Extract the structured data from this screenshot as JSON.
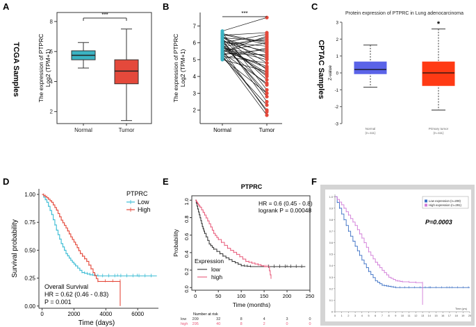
{
  "figure": {
    "panel_letters": [
      "A",
      "B",
      "C",
      "D",
      "E",
      "F"
    ],
    "side_labels": {
      "tcga": "TCGA Samples",
      "cptac": "CPTAC Samples"
    }
  },
  "chart_data": [
    {
      "panel": "A",
      "type": "box",
      "ylabel_line1": "The expression of PTPRC",
      "ylabel_line2": "Log2 (TPM+1)",
      "categories": [
        "Normal",
        "Tumor"
      ],
      "ylim": [
        1.2,
        8.6
      ],
      "yticks": [
        2,
        4,
        6,
        8
      ],
      "boxes": [
        {
          "name": "Normal",
          "min": 4.9,
          "q1": 5.45,
          "median": 5.75,
          "q3": 6.05,
          "max": 6.6,
          "color": "#3bb3c3"
        },
        {
          "name": "Tumor",
          "min": 1.4,
          "q1": 3.85,
          "median": 4.7,
          "q3": 5.45,
          "max": 7.5,
          "color": "#e4493b"
        }
      ],
      "significance": "***"
    },
    {
      "panel": "B",
      "type": "paired-dot",
      "ylabel_line1": "The expression of PTPRC",
      "ylabel_line2": "Log2 (TPM+1)",
      "categories": [
        "Normal",
        "Tumor"
      ],
      "ylim": [
        1.2,
        7.8
      ],
      "yticks": [
        2,
        3,
        4,
        5,
        6,
        7
      ],
      "pairs": [
        [
          5.0,
          4.3
        ],
        [
          5.1,
          3.0
        ],
        [
          5.2,
          4.8
        ],
        [
          5.3,
          5.6
        ],
        [
          5.4,
          2.0
        ],
        [
          5.5,
          6.0
        ],
        [
          5.6,
          4.5
        ],
        [
          5.7,
          5.2
        ],
        [
          5.8,
          3.5
        ],
        [
          5.9,
          6.2
        ],
        [
          6.0,
          4.0
        ],
        [
          6.1,
          5.5
        ],
        [
          6.2,
          2.5
        ],
        [
          6.3,
          6.1
        ],
        [
          6.4,
          4.8
        ],
        [
          6.5,
          5.9
        ],
        [
          6.6,
          3.2
        ],
        [
          6.7,
          7.5
        ],
        [
          5.25,
          1.7
        ],
        [
          5.45,
          6.4
        ],
        [
          5.65,
          5.0
        ],
        [
          5.85,
          4.2
        ],
        [
          6.05,
          5.8
        ],
        [
          6.25,
          3.8
        ],
        [
          6.45,
          6.6
        ],
        [
          5.15,
          2.3
        ],
        [
          5.35,
          5.3
        ],
        [
          5.55,
          4.6
        ],
        [
          5.75,
          6.3
        ],
        [
          5.95,
          3.0
        ],
        [
          6.15,
          5.1
        ],
        [
          6.35,
          4.4
        ],
        [
          6.55,
          6.0
        ],
        [
          5.05,
          5.7
        ],
        [
          5.6,
          1.9
        ],
        [
          6.0,
          6.5
        ],
        [
          6.3,
          5.4
        ],
        [
          5.8,
          4.1
        ],
        [
          5.4,
          3.6
        ],
        [
          6.1,
          2.8
        ]
      ],
      "significance": "***"
    },
    {
      "panel": "C",
      "type": "box",
      "title": "Protein expression of PTPRC in Lung adenocarcinoma",
      "ylabel": "Z-value",
      "categories": [
        "Normal",
        "Primary tumor"
      ],
      "sample_sizes": [
        "(n=111)",
        "(n=111)"
      ],
      "ylim": [
        -3,
        3
      ],
      "yticks": [
        3,
        2,
        1,
        0,
        -1,
        -2,
        -3
      ],
      "boxes": [
        {
          "name": "Normal",
          "min": -0.85,
          "q1": -0.05,
          "median": 0.2,
          "q3": 0.65,
          "max": 1.65,
          "color": "#5a63e8"
        },
        {
          "name": "Primary tumor",
          "min": -2.2,
          "q1": -0.75,
          "median": 0.0,
          "q3": 0.65,
          "max": 2.6,
          "color": "#ff3a14"
        }
      ],
      "significance": "*"
    },
    {
      "panel": "D",
      "type": "line",
      "subtype": "kaplan-meier",
      "xlabel": "Time (days)",
      "ylabel": "Survival probability",
      "xticks": [
        0,
        2000,
        4000,
        6000
      ],
      "yticks": [
        0.0,
        0.25,
        0.5,
        0.75,
        1.0
      ],
      "ytick_labels": [
        "0.00",
        "0.25",
        "0.50",
        "0.75",
        "1.00"
      ],
      "xlim": [
        -200,
        7300
      ],
      "ylim": [
        -0.02,
        1.05
      ],
      "legend_title": "PTPRC",
      "series": [
        {
          "name": "Low",
          "color": "#3bbcd4",
          "points": [
            [
              0,
              1
            ],
            [
              300,
              0.93
            ],
            [
              600,
              0.82
            ],
            [
              900,
              0.68
            ],
            [
              1200,
              0.56
            ],
            [
              1500,
              0.47
            ],
            [
              1800,
              0.41
            ],
            [
              2100,
              0.36
            ],
            [
              2500,
              0.3
            ],
            [
              3000,
              0.28
            ],
            [
              3500,
              0.27
            ],
            [
              7200,
              0.27
            ]
          ]
        },
        {
          "name": "High",
          "color": "#e4493b",
          "points": [
            [
              0,
              1
            ],
            [
              300,
              0.97
            ],
            [
              600,
              0.93
            ],
            [
              900,
              0.86
            ],
            [
              1200,
              0.77
            ],
            [
              1500,
              0.7
            ],
            [
              1800,
              0.62
            ],
            [
              2100,
              0.55
            ],
            [
              2400,
              0.47
            ],
            [
              2800,
              0.4
            ],
            [
              3200,
              0.3
            ],
            [
              3500,
              0.22
            ],
            [
              4900,
              0.22
            ],
            [
              4900,
              0.0
            ]
          ]
        }
      ],
      "annotation_line1": "Overall Survival",
      "annotation_line2": "HR = 0.62 (0.46 - 0.83)",
      "annotation_line3": "P = 0.001"
    },
    {
      "panel": "E",
      "type": "line",
      "subtype": "kaplan-meier",
      "title": "PTPRC",
      "xlabel": "Time (months)",
      "ylabel": "Probability",
      "xticks": [
        0,
        50,
        100,
        150,
        200,
        250
      ],
      "yticks": [
        0.0,
        0.2,
        0.4,
        0.6,
        0.8,
        1.0
      ],
      "ytick_labels": [
        "0.0",
        "0.2",
        "0.4",
        "0.6",
        "0.8",
        "1.0"
      ],
      "xlim": [
        -8,
        250
      ],
      "ylim": [
        -0.03,
        1.05
      ],
      "legend_title": "Expression",
      "series": [
        {
          "name": "low",
          "color": "#333333",
          "points": [
            [
              0,
              1
            ],
            [
              5,
              0.9
            ],
            [
              10,
              0.8
            ],
            [
              15,
              0.7
            ],
            [
              20,
              0.62
            ],
            [
              30,
              0.5
            ],
            [
              40,
              0.44
            ],
            [
              60,
              0.36
            ],
            [
              80,
              0.3
            ],
            [
              100,
              0.25
            ],
            [
              120,
              0.24
            ],
            [
              240,
              0.24
            ]
          ]
        },
        {
          "name": "high",
          "color": "#e85a7a",
          "points": [
            [
              0,
              1
            ],
            [
              5,
              0.96
            ],
            [
              10,
              0.92
            ],
            [
              20,
              0.83
            ],
            [
              30,
              0.73
            ],
            [
              40,
              0.62
            ],
            [
              50,
              0.55
            ],
            [
              70,
              0.45
            ],
            [
              90,
              0.38
            ],
            [
              110,
              0.3
            ],
            [
              130,
              0.27
            ],
            [
              150,
              0.24
            ],
            [
              160,
              0.24
            ],
            [
              165,
              0.1
            ]
          ]
        }
      ],
      "annotation_line1": "HR = 0.6 (0.45 - 0.8)",
      "annotation_line2": "logrank P = 0.00048",
      "risk_table": {
        "header": "Number at risk",
        "rows": [
          {
            "label": "low",
            "values": [
              "209",
              "32",
              "8",
              "4",
              "3",
              "0"
            ]
          },
          {
            "label": "high",
            "values": [
              "295",
              "40",
              "8",
              "2",
              "0",
              "0"
            ]
          }
        ]
      }
    },
    {
      "panel": "F",
      "type": "line",
      "subtype": "kaplan-meier",
      "xlabel": "Time (yrs)",
      "xticks": [
        0,
        1,
        2,
        3,
        4,
        5,
        6,
        7,
        8,
        9,
        10,
        11,
        12,
        13,
        14,
        15,
        16,
        17,
        18,
        19,
        20
      ],
      "yticks": [
        0.0,
        0.1,
        0.2,
        0.3,
        0.4,
        0.5,
        0.6,
        0.7,
        0.8,
        0.9,
        1.0
      ],
      "ytick_labels": [
        "0",
        "0.1",
        "0.2",
        "0.3",
        "0.4",
        "0.5",
        "0.6",
        "0.7",
        "0.8",
        "0.9",
        "1.0"
      ],
      "xlim": [
        0,
        20
      ],
      "ylim": [
        0,
        1.02
      ],
      "series": [
        {
          "name": "Low expression (n=209)",
          "color": "#3a6fc4",
          "points": [
            [
              0,
              1
            ],
            [
              1,
              0.85
            ],
            [
              2,
              0.7
            ],
            [
              3,
              0.57
            ],
            [
              4,
              0.45
            ],
            [
              5,
              0.35
            ],
            [
              6,
              0.27
            ],
            [
              7,
              0.23
            ],
            [
              8,
              0.22
            ],
            [
              9,
              0.21
            ],
            [
              11,
              0.21
            ],
            [
              20,
              0.21
            ]
          ]
        },
        {
          "name": "High expression (n=291)",
          "color": "#d07ad7",
          "points": [
            [
              0,
              1
            ],
            [
              1,
              0.93
            ],
            [
              2,
              0.84
            ],
            [
              3,
              0.75
            ],
            [
              4,
              0.64
            ],
            [
              5,
              0.52
            ],
            [
              6,
              0.43
            ],
            [
              7,
              0.36
            ],
            [
              8,
              0.3
            ],
            [
              9,
              0.27
            ],
            [
              10,
              0.26
            ],
            [
              13,
              0.25
            ],
            [
              13,
              0.06
            ]
          ]
        }
      ],
      "annotation": "P=0.0003"
    }
  ]
}
